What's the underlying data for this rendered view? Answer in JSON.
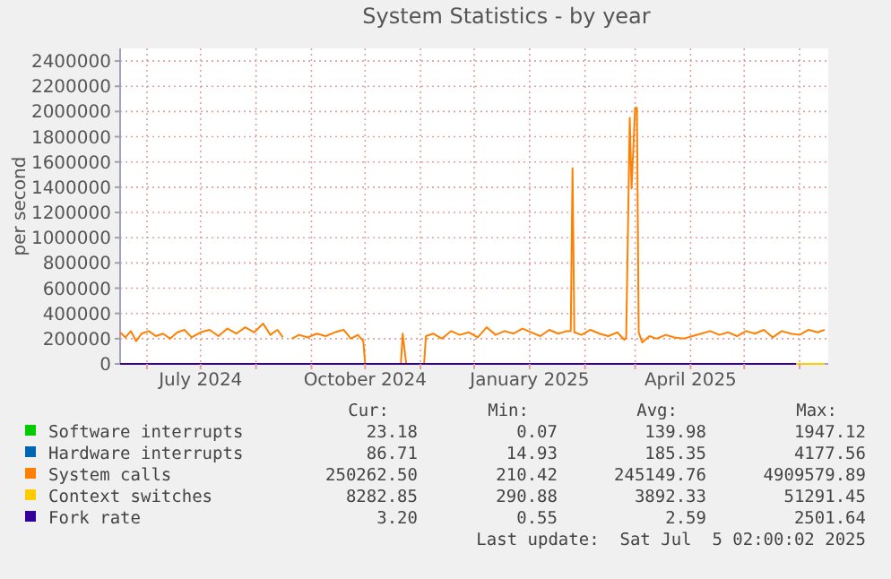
{
  "chart_data": {
    "type": "line",
    "title": "System Statistics - by year",
    "ylabel": "per second",
    "xlim": [
      "2024-05-17",
      "2025-06-17"
    ],
    "xticks": [
      {
        "value": "2024-06-01",
        "label": null
      },
      {
        "value": "2024-07-01",
        "label": "July 2024"
      },
      {
        "value": "2024-08-01",
        "label": null
      },
      {
        "value": "2024-09-01",
        "label": null
      },
      {
        "value": "2024-10-01",
        "label": "October 2024"
      },
      {
        "value": "2024-11-01",
        "label": null
      },
      {
        "value": "2024-12-01",
        "label": null
      },
      {
        "value": "2025-01-01",
        "label": "January 2025"
      },
      {
        "value": "2025-02-01",
        "label": null
      },
      {
        "value": "2025-03-01",
        "label": null
      },
      {
        "value": "2025-04-01",
        "label": "April 2025"
      },
      {
        "value": "2025-05-01",
        "label": null
      },
      {
        "value": "2025-06-01",
        "label": null
      }
    ],
    "ylim": [
      0,
      2500000
    ],
    "yticks": [
      0,
      200000,
      400000,
      600000,
      800000,
      1000000,
      1200000,
      1400000,
      1600000,
      1800000,
      2000000,
      2200000,
      2400000
    ],
    "grid": true,
    "legend": "bottom",
    "series": [
      {
        "name": "Software interrupts",
        "color": "#00cc00"
      },
      {
        "name": "Hardware interrupts",
        "color": "#0066b3"
      },
      {
        "name": "System calls",
        "color": "#ff8000",
        "x": [
          "2024-05-17",
          "2024-05-20",
          "2024-05-23",
          "2024-05-26",
          "2024-05-29",
          "2024-06-02",
          "2024-06-06",
          "2024-06-10",
          "2024-06-14",
          "2024-06-18",
          "2024-06-22",
          "2024-06-26",
          "2024-07-01",
          "2024-07-06",
          "2024-07-11",
          "2024-07-16",
          "2024-07-21",
          "2024-07-26",
          "2024-07-31",
          "2024-08-05",
          "2024-08-09",
          "2024-08-13",
          "2024-08-16",
          "2024-08-18",
          "2024-08-21",
          "2024-08-25",
          "2024-08-30",
          "2024-09-04",
          "2024-09-09",
          "2024-09-14",
          "2024-09-19",
          "2024-09-23",
          "2024-09-27",
          "2024-09-30",
          "2024-10-01",
          "2024-10-09",
          "2024-10-21",
          "2024-10-22",
          "2024-10-24",
          "2024-10-29",
          "2024-11-03",
          "2024-11-04",
          "2024-11-08",
          "2024-11-13",
          "2024-11-18",
          "2024-11-23",
          "2024-11-28",
          "2024-12-03",
          "2024-12-08",
          "2024-12-13",
          "2024-12-18",
          "2024-12-23",
          "2024-12-28",
          "2025-01-02",
          "2025-01-07",
          "2025-01-12",
          "2025-01-17",
          "2025-01-22",
          "2025-01-24",
          "2025-01-25",
          "2025-01-26",
          "2025-01-30",
          "2025-02-04",
          "2025-02-09",
          "2025-02-14",
          "2025-02-19",
          "2025-02-23",
          "2025-02-24",
          "2025-02-26",
          "2025-02-27",
          "2025-03-01",
          "2025-03-02",
          "2025-03-03",
          "2025-03-05",
          "2025-03-09",
          "2025-03-13",
          "2025-03-18",
          "2025-03-23",
          "2025-03-28",
          "2025-04-02",
          "2025-04-07",
          "2025-04-12",
          "2025-04-17",
          "2025-04-22",
          "2025-04-27",
          "2025-05-02",
          "2025-05-07",
          "2025-05-12",
          "2025-05-17",
          "2025-05-22",
          "2025-05-27",
          "2025-06-01",
          "2025-06-06",
          "2025-06-11",
          "2025-06-15"
        ],
        "values": [
          250000,
          210000,
          260000,
          180000,
          240000,
          260000,
          220000,
          240000,
          200000,
          250000,
          270000,
          210000,
          250000,
          270000,
          220000,
          280000,
          240000,
          290000,
          250000,
          320000,
          230000,
          270000,
          210000,
          null,
          200000,
          230000,
          210000,
          240000,
          220000,
          250000,
          270000,
          200000,
          230000,
          180000,
          0,
          null,
          0,
          240000,
          0,
          null,
          0,
          220000,
          240000,
          200000,
          260000,
          230000,
          250000,
          210000,
          290000,
          230000,
          260000,
          240000,
          280000,
          250000,
          220000,
          270000,
          240000,
          260000,
          260000,
          1550000,
          250000,
          230000,
          270000,
          240000,
          220000,
          250000,
          190000,
          210000,
          1950000,
          1390000,
          2030000,
          2030000,
          250000,
          170000,
          220000,
          200000,
          230000,
          210000,
          200000,
          220000,
          240000,
          260000,
          230000,
          250000,
          220000,
          260000,
          240000,
          270000,
          210000,
          260000,
          240000,
          230000,
          270000,
          250000,
          270000
        ]
      },
      {
        "name": "Context switches",
        "color": "#ffcc00",
        "x": [
          "2025-05-30",
          "2025-06-15"
        ],
        "values": [
          0,
          0
        ]
      },
      {
        "name": "Fork rate",
        "color": "#330099",
        "x": [
          "2024-05-17",
          "2025-05-30"
        ],
        "values": [
          0,
          0
        ]
      }
    ],
    "annotations": [
      "Cur:",
      "Min:",
      "Avg:",
      "Max:",
      "23.18",
      "0.07",
      "139.98",
      "1947.12",
      "86.71",
      "14.93",
      "185.35",
      "4177.56",
      "250262.50",
      "210.42",
      "245149.76",
      "4909579.89",
      "8282.85",
      "290.88",
      "3892.33",
      "51291.45",
      "3.20",
      "0.55",
      "2.59",
      "2501.64",
      "Last update:  Sat Jul  5 02:00:02 2025"
    ]
  }
}
